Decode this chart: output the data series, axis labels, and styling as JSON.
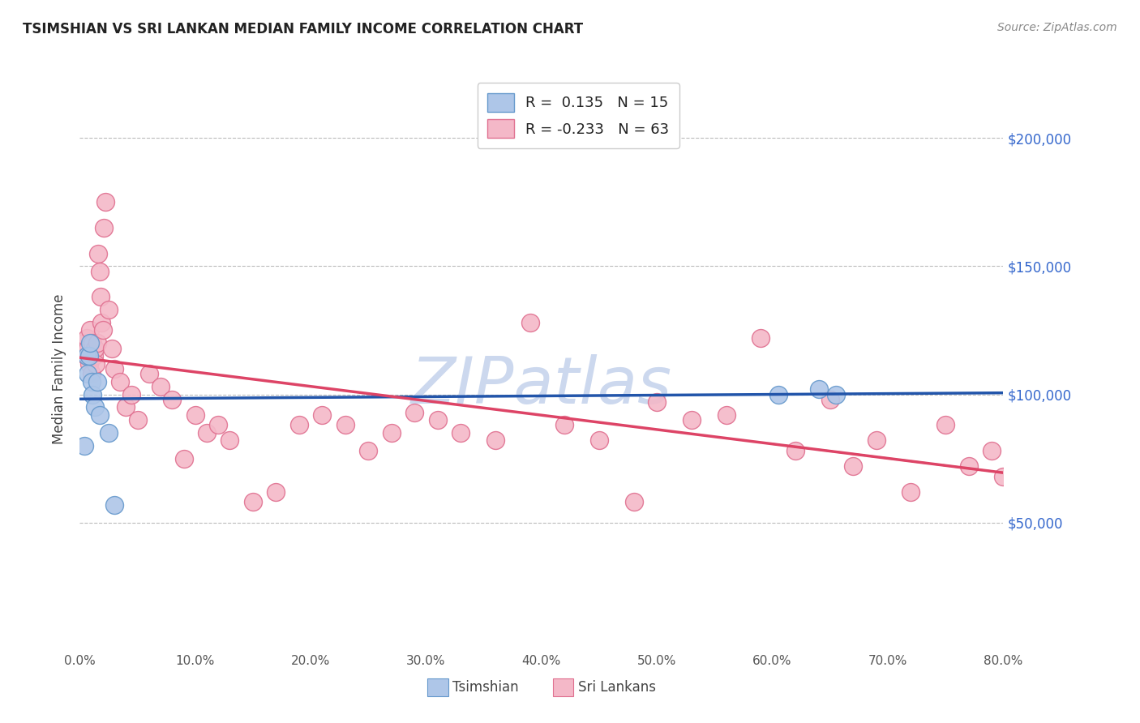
{
  "title": "TSIMSHIAN VS SRI LANKAN MEDIAN FAMILY INCOME CORRELATION CHART",
  "source": "Source: ZipAtlas.com",
  "ylabel": "Median Family Income",
  "y_ticks": [
    50000,
    100000,
    150000,
    200000
  ],
  "y_tick_labels": [
    "$50,000",
    "$100,000",
    "$150,000",
    "$200,000"
  ],
  "x_min": 0.0,
  "x_max": 80.0,
  "y_min": 0,
  "y_max": 220000,
  "legend_R_tsimshian": "0.135",
  "legend_N_tsimshian": "15",
  "legend_R_srilankans": "-0.233",
  "legend_N_srilankans": "63",
  "tsimshian_color": "#aec6e8",
  "tsimshian_edge_color": "#6699cc",
  "srilankans_color": "#f4b8c8",
  "srilankans_edge_color": "#e07090",
  "trend_tsimshian_color": "#2255aa",
  "trend_srilankans_color": "#dd4466",
  "watermark": "ZIPatlas",
  "watermark_color": "#ccd8ee",
  "tsimshian_x": [
    0.4,
    0.6,
    0.7,
    0.8,
    0.9,
    1.0,
    1.1,
    1.3,
    1.5,
    1.7,
    2.5,
    3.0,
    60.5,
    64.0,
    65.5
  ],
  "tsimshian_y": [
    80000,
    115000,
    108000,
    115000,
    120000,
    105000,
    100000,
    95000,
    105000,
    92000,
    85000,
    57000,
    100000,
    102000,
    100000
  ],
  "srilankans_x": [
    0.3,
    0.4,
    0.5,
    0.6,
    0.7,
    0.8,
    0.9,
    1.0,
    1.1,
    1.2,
    1.3,
    1.4,
    1.5,
    1.6,
    1.7,
    1.8,
    1.9,
    2.0,
    2.1,
    2.2,
    2.5,
    2.8,
    3.0,
    3.5,
    4.0,
    4.5,
    5.0,
    6.0,
    7.0,
    8.0,
    9.0,
    10.0,
    11.0,
    12.0,
    13.0,
    15.0,
    17.0,
    19.0,
    21.0,
    23.0,
    25.0,
    27.0,
    29.0,
    31.0,
    33.0,
    36.0,
    39.0,
    42.0,
    45.0,
    48.0,
    50.0,
    53.0,
    56.0,
    59.0,
    62.0,
    65.0,
    67.0,
    69.0,
    72.0,
    75.0,
    77.0,
    79.0,
    80.0
  ],
  "srilankans_y": [
    118000,
    120000,
    115000,
    122000,
    118000,
    112000,
    125000,
    108000,
    120000,
    115000,
    118000,
    112000,
    120000,
    155000,
    148000,
    138000,
    128000,
    125000,
    165000,
    175000,
    133000,
    118000,
    110000,
    105000,
    95000,
    100000,
    90000,
    108000,
    103000,
    98000,
    75000,
    92000,
    85000,
    88000,
    82000,
    58000,
    62000,
    88000,
    92000,
    88000,
    78000,
    85000,
    93000,
    90000,
    85000,
    82000,
    128000,
    88000,
    82000,
    58000,
    97000,
    90000,
    92000,
    122000,
    78000,
    98000,
    72000,
    82000,
    62000,
    88000,
    72000,
    78000,
    68000
  ]
}
